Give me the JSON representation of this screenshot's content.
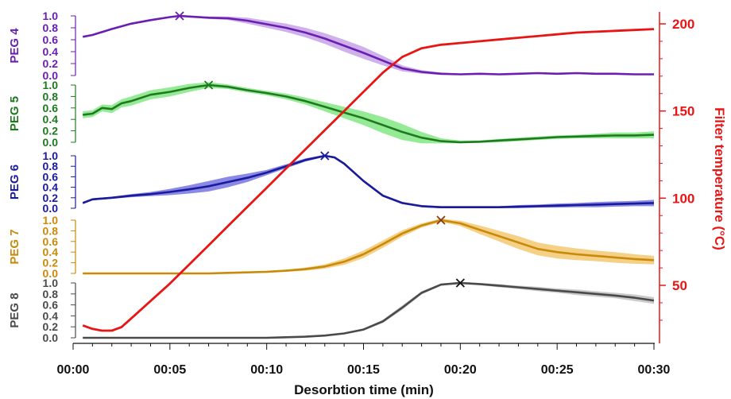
{
  "chart_data": {
    "type": "line",
    "xlabel": "Desorbtion time (min)",
    "x_ticks": [
      "00:00",
      "00:05",
      "00:10",
      "00:15",
      "00:20",
      "00:25",
      "00:30"
    ],
    "xlim_min": [
      0,
      30
    ],
    "grid": false,
    "panel_ticks": [
      "1.0",
      "0.8",
      "0.6",
      "0.4",
      "0.2",
      "0.0"
    ],
    "panels": [
      {
        "name": "PEG 4",
        "color": "#6a1fb0",
        "band_color": "#c29ee6",
        "ylim": [
          0,
          1
        ],
        "peak": [
          5.5,
          1.0
        ],
        "x": [
          0.5,
          1,
          2,
          3,
          4,
          5,
          5.5,
          6,
          7,
          8,
          9,
          10,
          11,
          12,
          13,
          14,
          15,
          16,
          17,
          18,
          19,
          20,
          21,
          22,
          23,
          24,
          25,
          26,
          27,
          28,
          29,
          30
        ],
        "y": [
          0.65,
          0.68,
          0.78,
          0.87,
          0.93,
          0.98,
          1.0,
          0.99,
          0.97,
          0.96,
          0.92,
          0.86,
          0.8,
          0.72,
          0.62,
          0.5,
          0.38,
          0.25,
          0.12,
          0.06,
          0.03,
          0.02,
          0.03,
          0.02,
          0.03,
          0.04,
          0.03,
          0.04,
          0.03,
          0.03,
          0.02,
          0.02
        ],
        "band": [
          0,
          0,
          0,
          0,
          0,
          0,
          0,
          0.01,
          0.02,
          0.03,
          0.05,
          0.06,
          0.07,
          0.08,
          0.09,
          0.1,
          0.1,
          0.08,
          0.05,
          0.03,
          0.02,
          0.01,
          0.01,
          0.01,
          0.01,
          0.01,
          0.01,
          0.01,
          0.01,
          0.01,
          0.01,
          0.01
        ]
      },
      {
        "name": "PEG 5",
        "color": "#1f7a1f",
        "band_color": "#7be67b",
        "ylim": [
          0,
          1
        ],
        "peak": [
          7.0,
          1.0
        ],
        "x": [
          0.5,
          1,
          1.5,
          2,
          2.5,
          3,
          4,
          5,
          6,
          7,
          8,
          9,
          10,
          11,
          12,
          13,
          14,
          15,
          16,
          17,
          18,
          19,
          20,
          21,
          22,
          23,
          24,
          25,
          26,
          27,
          28,
          29,
          30
        ],
        "y": [
          0.48,
          0.5,
          0.6,
          0.58,
          0.68,
          0.72,
          0.83,
          0.88,
          0.95,
          1.0,
          0.97,
          0.91,
          0.86,
          0.8,
          0.72,
          0.62,
          0.52,
          0.42,
          0.3,
          0.18,
          0.08,
          0.02,
          0.0,
          0.01,
          0.03,
          0.05,
          0.07,
          0.09,
          0.1,
          0.11,
          0.12,
          0.12,
          0.13
        ],
        "band": [
          0.06,
          0.06,
          0.06,
          0.07,
          0.07,
          0.08,
          0.08,
          0.08,
          0.07,
          0.05,
          0.04,
          0.04,
          0.04,
          0.05,
          0.06,
          0.08,
          0.1,
          0.12,
          0.14,
          0.14,
          0.1,
          0.05,
          0.03,
          0.02,
          0.03,
          0.03,
          0.03,
          0.03,
          0.03,
          0.04,
          0.05,
          0.05,
          0.06
        ]
      },
      {
        "name": "PEG 6",
        "color": "#1a1a9c",
        "band_color": "#6d6de0",
        "ylim": [
          0,
          1
        ],
        "peak": [
          13.0,
          1.0
        ],
        "x": [
          0.5,
          1,
          2,
          3,
          4,
          5,
          6,
          7,
          8,
          9,
          10,
          11,
          12,
          13,
          13.5,
          14,
          15,
          16,
          17,
          18,
          19,
          20,
          21,
          22,
          23,
          24,
          25,
          26,
          27,
          28,
          29,
          30
        ],
        "y": [
          0.1,
          0.17,
          0.2,
          0.24,
          0.27,
          0.31,
          0.36,
          0.42,
          0.5,
          0.58,
          0.68,
          0.8,
          0.92,
          1.0,
          0.97,
          0.85,
          0.52,
          0.24,
          0.1,
          0.04,
          0.02,
          0.02,
          0.02,
          0.02,
          0.03,
          0.04,
          0.05,
          0.06,
          0.07,
          0.08,
          0.09,
          0.1
        ],
        "band": [
          0.02,
          0.02,
          0.02,
          0.03,
          0.04,
          0.06,
          0.08,
          0.1,
          0.1,
          0.08,
          0.05,
          0.04,
          0.03,
          0.02,
          0.02,
          0.02,
          0.02,
          0.02,
          0.02,
          0.02,
          0.02,
          0.02,
          0.02,
          0.02,
          0.03,
          0.03,
          0.04,
          0.04,
          0.05,
          0.05,
          0.05,
          0.06
        ]
      },
      {
        "name": "PEG 7",
        "color": "#c98a0a",
        "band_color": "#f2c56a",
        "ylim": [
          0,
          1
        ],
        "peak": [
          19.0,
          1.0
        ],
        "x": [
          0.5,
          1,
          2,
          3,
          4,
          5,
          6,
          7,
          8,
          9,
          10,
          11,
          12,
          13,
          14,
          15,
          16,
          17,
          18,
          19,
          20,
          21,
          22,
          23,
          24,
          25,
          26,
          27,
          28,
          29,
          30
        ],
        "y": [
          0.0,
          0.0,
          0.0,
          0.0,
          0.0,
          0.0,
          0.0,
          0.0,
          0.01,
          0.02,
          0.03,
          0.05,
          0.08,
          0.13,
          0.22,
          0.36,
          0.55,
          0.75,
          0.9,
          1.0,
          0.94,
          0.82,
          0.7,
          0.58,
          0.46,
          0.4,
          0.36,
          0.33,
          0.3,
          0.27,
          0.25
        ],
        "band": [
          0.01,
          0.01,
          0.01,
          0.01,
          0.01,
          0.01,
          0.01,
          0.01,
          0.01,
          0.01,
          0.02,
          0.02,
          0.03,
          0.04,
          0.06,
          0.07,
          0.07,
          0.06,
          0.04,
          0.03,
          0.05,
          0.08,
          0.1,
          0.12,
          0.12,
          0.12,
          0.11,
          0.1,
          0.1,
          0.09,
          0.08
        ]
      },
      {
        "name": "PEG 8",
        "color": "#4a4a4a",
        "band_color": "#bdbdbd",
        "ylim": [
          0,
          1
        ],
        "peak": [
          20.0,
          1.0
        ],
        "x": [
          0.5,
          1,
          2,
          3,
          4,
          5,
          6,
          7,
          8,
          9,
          10,
          11,
          12,
          13,
          14,
          15,
          16,
          17,
          18,
          19,
          20,
          21,
          22,
          23,
          24,
          25,
          26,
          27,
          28,
          29,
          30
        ],
        "y": [
          0.0,
          0.0,
          0.0,
          0.0,
          0.0,
          0.0,
          0.0,
          0.0,
          0.0,
          0.0,
          0.0,
          0.01,
          0.02,
          0.04,
          0.08,
          0.15,
          0.3,
          0.55,
          0.82,
          0.97,
          1.0,
          0.98,
          0.95,
          0.92,
          0.89,
          0.86,
          0.83,
          0.8,
          0.77,
          0.73,
          0.68
        ],
        "band": [
          0,
          0,
          0,
          0,
          0,
          0,
          0,
          0,
          0,
          0,
          0,
          0,
          0,
          0.01,
          0.01,
          0.02,
          0.03,
          0.04,
          0.03,
          0.02,
          0.02,
          0.02,
          0.03,
          0.03,
          0.04,
          0.04,
          0.05,
          0.05,
          0.05,
          0.06,
          0.06
        ]
      }
    ],
    "temperature": {
      "ylabel": "Filter temperature (°C)",
      "color": "#e81515",
      "y_ticks": [
        "200",
        "150",
        "100",
        "50"
      ],
      "tick_values": [
        200,
        150,
        100,
        50
      ],
      "x": [
        0.5,
        1,
        1.5,
        2,
        2.5,
        3,
        4,
        5,
        6,
        7,
        8,
        9,
        10,
        11,
        12,
        13,
        14,
        15,
        16,
        17,
        18,
        19,
        20,
        21,
        22,
        23,
        24,
        25,
        26,
        27,
        28,
        29,
        30
      ],
      "y": [
        27,
        25,
        24,
        24,
        26,
        31,
        41,
        51,
        62,
        73,
        84,
        95,
        106,
        117,
        128,
        139,
        150,
        161,
        172,
        181,
        186,
        188,
        189,
        190,
        191,
        192,
        193,
        194,
        195,
        195.5,
        196,
        196.5,
        197
      ]
    }
  }
}
